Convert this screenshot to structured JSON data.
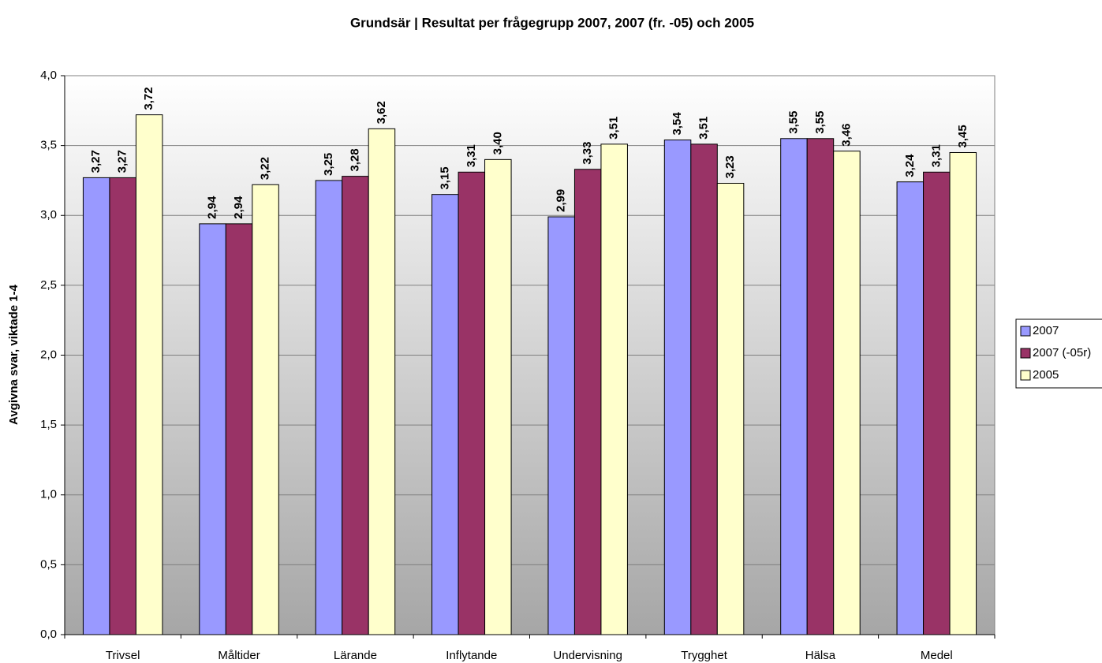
{
  "chart_data": {
    "type": "bar",
    "title": "Grundsär | Resultat per frågegrupp 2007, 2007 (fr. -05) och 2005",
    "y_label": "Avgivna svar, viktade 1-4",
    "categories": [
      "Trivsel",
      "Måltider",
      "Lärande",
      "Inflytande",
      "Undervisning",
      "Trygghet",
      "Hälsa",
      "Medel"
    ],
    "series": [
      {
        "name": "2007",
        "color": "#9999ff",
        "values": [
          3.27,
          2.94,
          3.25,
          3.15,
          2.99,
          3.54,
          3.55,
          3.24
        ],
        "value_labels": [
          "3,27",
          "2,94",
          "3,25",
          "3,15",
          "2,99",
          "3,54",
          "3,55",
          "3,24"
        ]
      },
      {
        "name": "2007 (-05r)",
        "color": "#993366",
        "values": [
          3.27,
          2.94,
          3.28,
          3.31,
          3.33,
          3.51,
          3.55,
          3.31
        ],
        "value_labels": [
          "3,27",
          "2,94",
          "3,28",
          "3,31",
          "3,33",
          "3,51",
          "3,55",
          "3,31"
        ]
      },
      {
        "name": "2005",
        "color": "#ffffcc",
        "values": [
          3.72,
          3.22,
          3.62,
          3.4,
          3.51,
          3.23,
          3.46,
          3.45
        ],
        "value_labels": [
          "3,72",
          "3,22",
          "3,62",
          "3,40",
          "3,51",
          "3,23",
          "3,46",
          "3,45"
        ]
      }
    ],
    "ylim": [
      0,
      4
    ],
    "yticks": [
      {
        "value": 0,
        "label": "0,0"
      },
      {
        "value": 0.5,
        "label": "0,5"
      },
      {
        "value": 1,
        "label": "1,0"
      },
      {
        "value": 1.5,
        "label": "1,5"
      },
      {
        "value": 2,
        "label": "2,0"
      },
      {
        "value": 2.5,
        "label": "2,5"
      },
      {
        "value": 3,
        "label": "3,0"
      },
      {
        "value": 3.5,
        "label": "3,5"
      },
      {
        "value": 4,
        "label": "4,0"
      }
    ],
    "grid": true,
    "legend": "right"
  }
}
